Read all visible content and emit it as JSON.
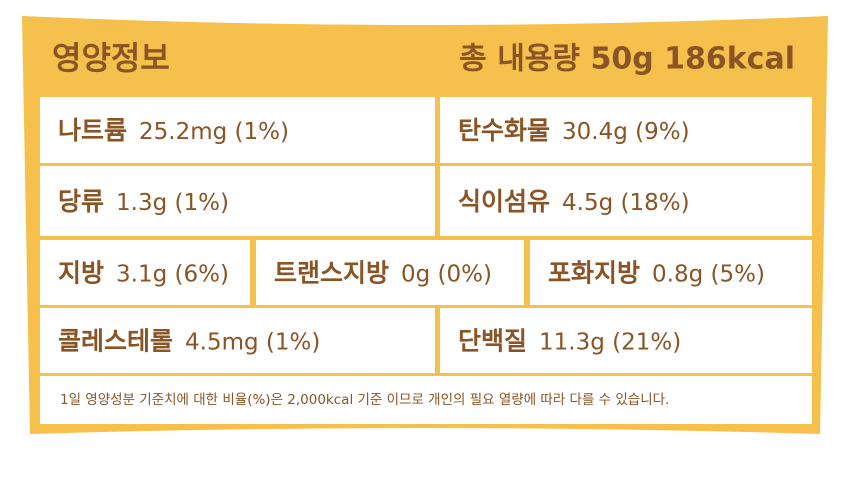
{
  "header": {
    "title": "영양정보",
    "total": "총 내용량 50g 186kcal"
  },
  "rows": [
    [
      {
        "name": "나트륨",
        "amount": "25.2mg (1%)"
      },
      {
        "name": "탄수화물",
        "amount": "30.4g (9%)"
      }
    ],
    [
      {
        "name": "당류",
        "amount": "1.3g (1%)"
      },
      {
        "name": "식이섬유",
        "amount": "4.5g (18%)"
      }
    ],
    [
      {
        "name": "지방",
        "amount": "3.1g (6%)"
      },
      {
        "name": "트랜스지방",
        "amount": "0g (0%)"
      },
      {
        "name": "포화지방",
        "amount": "0.8g (5%)"
      }
    ],
    [
      {
        "name": "콜레스테롤",
        "amount": "4.5mg (1%)"
      },
      {
        "name": "단백질",
        "amount": "11.3g (21%)"
      }
    ]
  ],
  "footnote": "1일 영양성분 기준치에 대한 비율(%)은 2,000kcal 기준 이므로 개인의 필요 열량에 따라 다를 수 있습니다."
}
